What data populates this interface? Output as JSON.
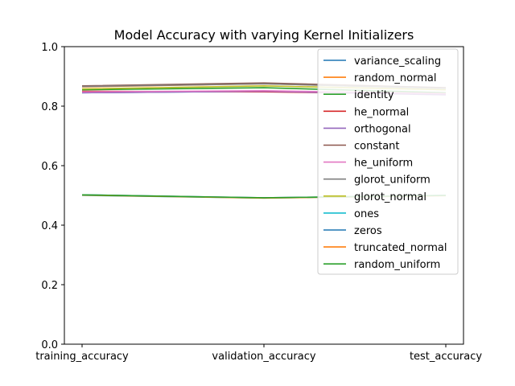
{
  "chart_data": {
    "type": "line",
    "title": "Model Accuracy with varying Kernel Initializers",
    "xlabel": "",
    "ylabel": "",
    "categories": [
      "training_accuracy",
      "validation_accuracy",
      "test_accuracy"
    ],
    "ylim": [
      0.0,
      1.0
    ],
    "yticks": [
      0.0,
      0.2,
      0.4,
      0.6,
      0.8,
      1.0
    ],
    "ytick_labels": [
      "0.0",
      "0.2",
      "0.4",
      "0.6",
      "0.8",
      "1.0"
    ],
    "grid": false,
    "legend_position": "top-right",
    "series": [
      {
        "name": "variance_scaling",
        "color": "#1f77b4",
        "values": [
          0.845,
          0.85,
          0.84
        ]
      },
      {
        "name": "random_normal",
        "color": "#ff7f0e",
        "values": [
          0.865,
          0.875,
          0.86
        ]
      },
      {
        "name": "identity",
        "color": "#2ca02c",
        "values": [
          0.855,
          0.862,
          0.845
        ]
      },
      {
        "name": "he_normal",
        "color": "#d62728",
        "values": [
          0.85,
          0.848,
          0.84
        ]
      },
      {
        "name": "orthogonal",
        "color": "#9467bd",
        "values": [
          0.845,
          0.85,
          0.838
        ]
      },
      {
        "name": "constant",
        "color": "#8c564b",
        "values": [
          0.868,
          0.878,
          0.862
        ]
      },
      {
        "name": "he_uniform",
        "color": "#e377c2",
        "values": [
          0.848,
          0.852,
          0.842
        ]
      },
      {
        "name": "glorot_uniform",
        "color": "#7f7f7f",
        "values": [
          0.866,
          0.875,
          0.86
        ]
      },
      {
        "name": "glorot_normal",
        "color": "#bcbd22",
        "values": [
          0.858,
          0.868,
          0.855
        ]
      },
      {
        "name": "ones",
        "color": "#17becf",
        "values": [
          0.5,
          0.491,
          0.5
        ]
      },
      {
        "name": "zeros",
        "color": "#1f77b4",
        "values": [
          0.502,
          0.492,
          0.5
        ]
      },
      {
        "name": "truncated_normal",
        "color": "#ff7f0e",
        "values": [
          0.501,
          0.491,
          0.499
        ]
      },
      {
        "name": "random_uniform",
        "color": "#2ca02c",
        "values": [
          0.502,
          0.492,
          0.5
        ]
      }
    ]
  }
}
